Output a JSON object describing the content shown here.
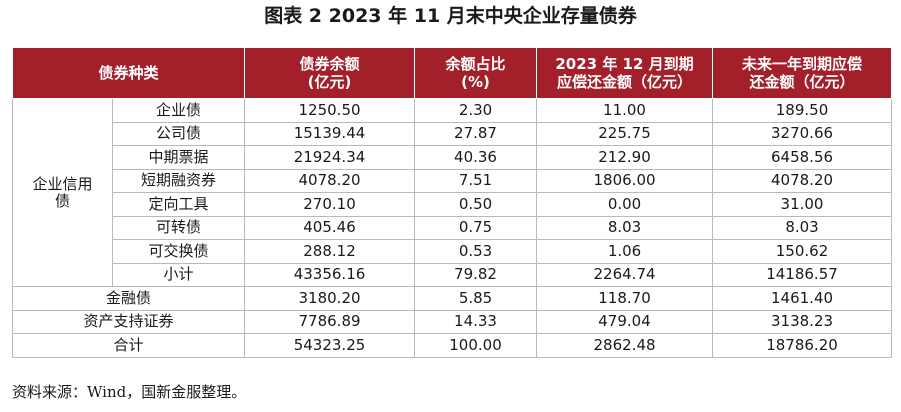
{
  "title": "图表 2  2023 年 11 月末中央企业存量债券",
  "table": {
    "headers": {
      "bond_type": "债券种类",
      "balance_l1": "债券余额",
      "balance_l2": "(亿元)",
      "share_l1": "余额占比",
      "share_l2": "(%)",
      "dec_due_l1": "2023 年 12 月到期",
      "dec_due_l2": "应偿还金额（亿元）",
      "year_due_l1": "未来一年到期应偿",
      "year_due_l2": "还金额（亿元）"
    },
    "group_label_l1": "企业信用",
    "group_label_l2": "债",
    "group_rows": [
      {
        "name": "企业债",
        "balance": "1250.50",
        "share": "2.30",
        "dec_due": "11.00",
        "year_due": "189.50"
      },
      {
        "name": "公司债",
        "balance": "15139.44",
        "share": "27.87",
        "dec_due": "225.75",
        "year_due": "3270.66"
      },
      {
        "name": "中期票据",
        "balance": "21924.34",
        "share": "40.36",
        "dec_due": "212.90",
        "year_due": "6458.56"
      },
      {
        "name": "短期融资券",
        "balance": "4078.20",
        "share": "7.51",
        "dec_due": "1806.00",
        "year_due": "4078.20"
      },
      {
        "name": "定向工具",
        "balance": "270.10",
        "share": "0.50",
        "dec_due": "0.00",
        "year_due": "31.00"
      },
      {
        "name": "可转债",
        "balance": "405.46",
        "share": "0.75",
        "dec_due": "8.03",
        "year_due": "8.03"
      },
      {
        "name": "可交换债",
        "balance": "288.12",
        "share": "0.53",
        "dec_due": "1.06",
        "year_due": "150.62"
      },
      {
        "name": "小计",
        "balance": "43356.16",
        "share": "79.82",
        "dec_due": "2264.74",
        "year_due": "14186.57"
      }
    ],
    "other_rows": [
      {
        "name": "金融债",
        "balance": "3180.20",
        "share": "5.85",
        "dec_due": "118.70",
        "year_due": "1461.40"
      },
      {
        "name": "资产支持证券",
        "balance": "7786.89",
        "share": "14.33",
        "dec_due": "479.04",
        "year_due": "3138.23"
      },
      {
        "name": "合计",
        "balance": "54323.25",
        "share": "100.00",
        "dec_due": "2862.48",
        "year_due": "18786.20"
      }
    ]
  },
  "source_note": "资料来源：Wind，国新金服整理。"
}
